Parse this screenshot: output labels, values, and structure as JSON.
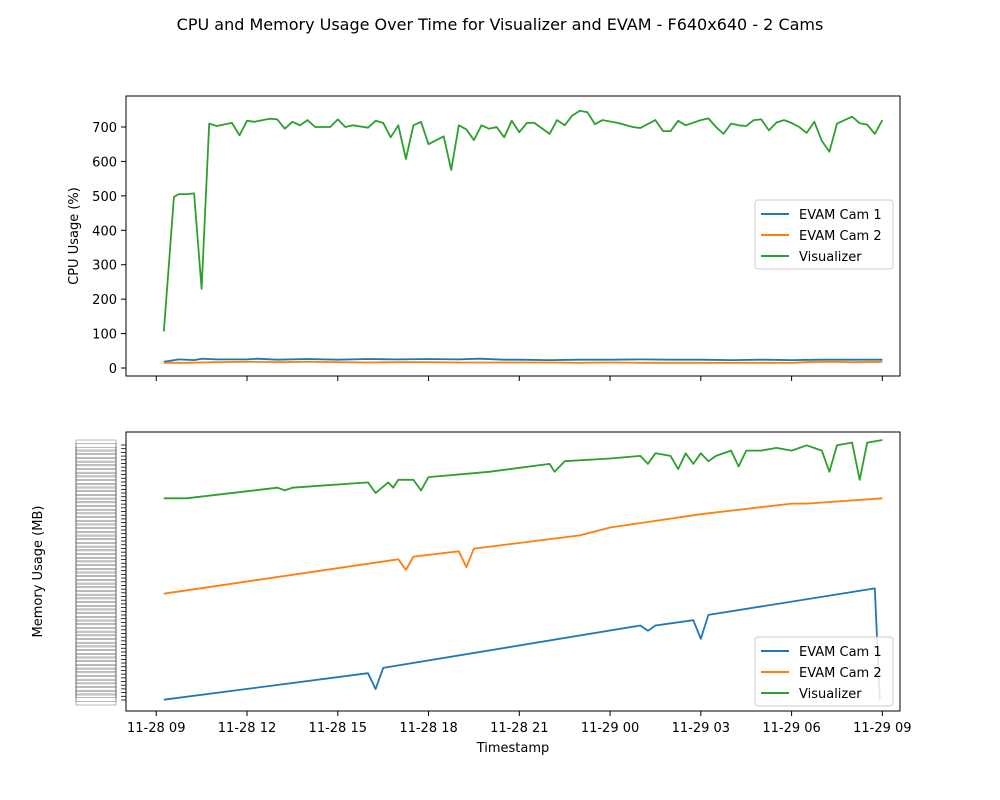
{
  "title": "CPU and Memory Usage Over Time for Visualizer and EVAM - F640x640 - 2 Cams",
  "colors": {
    "EVAM Cam 1": "#1f77b4",
    "EVAM Cam 2": "#ff7f0e",
    "Visualizer": "#2ca02c"
  },
  "chart_data": [
    {
      "type": "line",
      "xlabel": "",
      "ylabel": "CPU Usage (%)",
      "ylim": [
        0,
        750
      ],
      "y_ticks": [
        0,
        100,
        200,
        300,
        400,
        500,
        600,
        700
      ],
      "x_tick_labels_shown": false,
      "legend": "center-right",
      "grid": false,
      "series": [
        {
          "name": "EVAM Cam 1",
          "color": "#1f77b4",
          "points": [
            [
              "2023-11-28 09:15",
              18
            ],
            [
              "2023-11-28 09:45",
              25
            ],
            [
              "2023-11-28 10:15",
              23
            ],
            [
              "2023-11-28 10:30",
              27
            ],
            [
              "2023-11-28 11:00",
              25
            ],
            [
              "2023-11-28 12:00",
              25
            ],
            [
              "2023-11-28 12:20",
              27
            ],
            [
              "2023-11-28 13:00",
              24
            ],
            [
              "2023-11-28 14:00",
              26
            ],
            [
              "2023-11-28 15:00",
              24
            ],
            [
              "2023-11-28 16:00",
              26
            ],
            [
              "2023-11-28 17:00",
              25
            ],
            [
              "2023-11-28 18:00",
              26
            ],
            [
              "2023-11-28 19:00",
              25
            ],
            [
              "2023-11-28 19:40",
              27
            ],
            [
              "2023-11-28 20:30",
              24
            ],
            [
              "2023-11-28 21:00",
              24
            ],
            [
              "2023-11-28 22:00",
              23
            ],
            [
              "2023-11-28 23:00",
              24
            ],
            [
              "2023-11-29 00:00",
              24
            ],
            [
              "2023-11-29 01:00",
              25
            ],
            [
              "2023-11-29 02:00",
              24
            ],
            [
              "2023-11-29 03:00",
              24
            ],
            [
              "2023-11-29 04:00",
              23
            ],
            [
              "2023-11-29 05:00",
              24
            ],
            [
              "2023-11-29 06:00",
              23
            ],
            [
              "2023-11-29 07:00",
              24
            ],
            [
              "2023-11-29 08:00",
              24
            ],
            [
              "2023-11-29 09:00",
              24
            ]
          ]
        },
        {
          "name": "EVAM Cam 2",
          "color": "#ff7f0e",
          "points": [
            [
              "2023-11-28 09:15",
              15
            ],
            [
              "2023-11-28 10:00",
              15
            ],
            [
              "2023-11-28 11:00",
              17
            ],
            [
              "2023-11-28 12:00",
              18
            ],
            [
              "2023-11-28 13:00",
              17
            ],
            [
              "2023-11-28 14:00",
              18
            ],
            [
              "2023-11-28 15:00",
              17
            ],
            [
              "2023-11-28 16:00",
              16
            ],
            [
              "2023-11-28 17:00",
              17
            ],
            [
              "2023-11-28 18:00",
              17
            ],
            [
              "2023-11-28 19:00",
              16
            ],
            [
              "2023-11-28 20:00",
              16
            ],
            [
              "2023-11-28 21:00",
              16
            ],
            [
              "2023-11-28 22:00",
              16
            ],
            [
              "2023-11-28 23:00",
              15
            ],
            [
              "2023-11-29 00:00",
              16
            ],
            [
              "2023-11-29 01:00",
              15
            ],
            [
              "2023-11-29 02:00",
              15
            ],
            [
              "2023-11-29 03:00",
              15
            ],
            [
              "2023-11-29 04:00",
              15
            ],
            [
              "2023-11-29 05:00",
              15
            ],
            [
              "2023-11-29 06:00",
              15
            ],
            [
              "2023-11-29 06:45",
              18
            ],
            [
              "2023-11-29 07:30",
              18
            ],
            [
              "2023-11-29 08:00",
              17
            ],
            [
              "2023-11-29 09:00",
              18
            ]
          ]
        },
        {
          "name": "Visualizer",
          "color": "#2ca02c",
          "points": [
            [
              "2023-11-28 09:15",
              106
            ],
            [
              "2023-11-28 09:25",
              300
            ],
            [
              "2023-11-28 09:35",
              497
            ],
            [
              "2023-11-28 09:45",
              505
            ],
            [
              "2023-11-28 10:00",
              505
            ],
            [
              "2023-11-28 10:15",
              507
            ],
            [
              "2023-11-28 10:30",
              230
            ],
            [
              "2023-11-28 10:45",
              710
            ],
            [
              "2023-11-28 11:00",
              703
            ],
            [
              "2023-11-28 11:30",
              712
            ],
            [
              "2023-11-28 11:45",
              676
            ],
            [
              "2023-11-28 12:00",
              718
            ],
            [
              "2023-11-28 12:15",
              715
            ],
            [
              "2023-11-28 12:45",
              724
            ],
            [
              "2023-11-28 13:00",
              722
            ],
            [
              "2023-11-28 13:15",
              695
            ],
            [
              "2023-11-28 13:30",
              715
            ],
            [
              "2023-11-28 13:45",
              705
            ],
            [
              "2023-11-28 14:00",
              720
            ],
            [
              "2023-11-28 14:15",
              700
            ],
            [
              "2023-11-28 14:45",
              700
            ],
            [
              "2023-11-28 15:00",
              722
            ],
            [
              "2023-11-28 15:15",
              700
            ],
            [
              "2023-11-28 15:30",
              705
            ],
            [
              "2023-11-28 16:00",
              698
            ],
            [
              "2023-11-28 16:15",
              718
            ],
            [
              "2023-11-28 16:30",
              712
            ],
            [
              "2023-11-28 16:45",
              670
            ],
            [
              "2023-11-28 17:00",
              705
            ],
            [
              "2023-11-28 17:15",
              607
            ],
            [
              "2023-11-28 17:30",
              705
            ],
            [
              "2023-11-28 17:45",
              715
            ],
            [
              "2023-11-28 18:00",
              650
            ],
            [
              "2023-11-28 18:30",
              673
            ],
            [
              "2023-11-28 18:45",
              575
            ],
            [
              "2023-11-28 19:00",
              705
            ],
            [
              "2023-11-28 19:15",
              693
            ],
            [
              "2023-11-28 19:30",
              662
            ],
            [
              "2023-11-28 19:45",
              705
            ],
            [
              "2023-11-28 20:00",
              695
            ],
            [
              "2023-11-28 20:15",
              700
            ],
            [
              "2023-11-28 20:30",
              670
            ],
            [
              "2023-11-28 20:45",
              718
            ],
            [
              "2023-11-28 21:00",
              685
            ],
            [
              "2023-11-28 21:15",
              712
            ],
            [
              "2023-11-28 21:30",
              712
            ],
            [
              "2023-11-28 22:00",
              680
            ],
            [
              "2023-11-28 22:15",
              720
            ],
            [
              "2023-11-28 22:30",
              705
            ],
            [
              "2023-11-28 22:45",
              733
            ],
            [
              "2023-11-28 23:00",
              747
            ],
            [
              "2023-11-28 23:15",
              743
            ],
            [
              "2023-11-28 23:30",
              708
            ],
            [
              "2023-11-28 23:45",
              720
            ],
            [
              "2023-11-29 00:15",
              712
            ],
            [
              "2023-11-29 00:45",
              700
            ],
            [
              "2023-11-29 01:00",
              697
            ],
            [
              "2023-11-29 01:30",
              720
            ],
            [
              "2023-11-29 01:45",
              688
            ],
            [
              "2023-11-29 02:00",
              688
            ],
            [
              "2023-11-29 02:15",
              718
            ],
            [
              "2023-11-29 02:30",
              705
            ],
            [
              "2023-11-29 03:00",
              720
            ],
            [
              "2023-11-29 03:15",
              725
            ],
            [
              "2023-11-29 03:30",
              700
            ],
            [
              "2023-11-29 03:45",
              680
            ],
            [
              "2023-11-29 04:00",
              710
            ],
            [
              "2023-11-29 04:15",
              705
            ],
            [
              "2023-11-29 04:30",
              703
            ],
            [
              "2023-11-29 04:45",
              720
            ],
            [
              "2023-11-29 05:00",
              722
            ],
            [
              "2023-11-29 05:15",
              690
            ],
            [
              "2023-11-29 05:30",
              713
            ],
            [
              "2023-11-29 05:45",
              720
            ],
            [
              "2023-11-29 06:00",
              712
            ],
            [
              "2023-11-29 06:15",
              700
            ],
            [
              "2023-11-29 06:30",
              683
            ],
            [
              "2023-11-29 06:45",
              715
            ],
            [
              "2023-11-29 07:00",
              660
            ],
            [
              "2023-11-29 07:15",
              628
            ],
            [
              "2023-11-29 07:30",
              710
            ],
            [
              "2023-11-29 08:00",
              730
            ],
            [
              "2023-11-29 08:15",
              711
            ],
            [
              "2023-11-29 08:30",
              707
            ],
            [
              "2023-11-29 08:45",
              680
            ],
            [
              "2023-11-29 09:00",
              720
            ]
          ]
        }
      ]
    },
    {
      "type": "line",
      "xlabel": "Timestamp",
      "ylabel": "Memory Usage (MB)",
      "ylim": [
        0,
        1
      ],
      "y_tick_labels_illegible": true,
      "x_ticks": [
        "11-28 09",
        "11-28 12",
        "11-28 15",
        "11-28 18",
        "11-28 21",
        "11-29 00",
        "11-29 03",
        "11-29 06",
        "11-29 09"
      ],
      "legend": "lower-right",
      "grid": false,
      "series": [
        {
          "name": "EVAM Cam 1",
          "color": "#1f77b4",
          "points": [
            [
              "2023-11-28 09:15",
              0.02
            ],
            [
              "2023-11-28 16:00",
              0.12
            ],
            [
              "2023-11-28 16:15",
              0.06
            ],
            [
              "2023-11-28 16:30",
              0.14
            ],
            [
              "2023-11-29 01:00",
              0.3
            ],
            [
              "2023-11-29 01:15",
              0.28
            ],
            [
              "2023-11-29 01:30",
              0.3
            ],
            [
              "2023-11-29 02:45",
              0.32
            ],
            [
              "2023-11-29 03:00",
              0.25
            ],
            [
              "2023-11-29 03:15",
              0.34
            ],
            [
              "2023-11-29 08:45",
              0.44
            ],
            [
              "2023-11-29 08:55",
              0.02
            ]
          ]
        },
        {
          "name": "EVAM Cam 2",
          "color": "#ff7f0e",
          "points": [
            [
              "2023-11-28 09:15",
              0.42
            ],
            [
              "2023-11-28 17:00",
              0.55
            ],
            [
              "2023-11-28 17:15",
              0.51
            ],
            [
              "2023-11-28 17:30",
              0.56
            ],
            [
              "2023-11-28 19:00",
              0.58
            ],
            [
              "2023-11-28 19:15",
              0.52
            ],
            [
              "2023-11-28 19:30",
              0.59
            ],
            [
              "2023-11-28 23:00",
              0.64
            ],
            [
              "2023-11-29 00:00",
              0.67
            ],
            [
              "2023-11-29 03:00",
              0.72
            ],
            [
              "2023-11-29 06:00",
              0.76
            ],
            [
              "2023-11-29 06:30",
              0.76
            ],
            [
              "2023-11-29 09:00",
              0.78
            ]
          ]
        },
        {
          "name": "Visualizer",
          "color": "#2ca02c",
          "points": [
            [
              "2023-11-28 09:15",
              0.78
            ],
            [
              "2023-11-28 10:00",
              0.78
            ],
            [
              "2023-11-28 13:00",
              0.82
            ],
            [
              "2023-11-28 13:15",
              0.81
            ],
            [
              "2023-11-28 13:30",
              0.82
            ],
            [
              "2023-11-28 16:00",
              0.84
            ],
            [
              "2023-11-28 16:15",
              0.8
            ],
            [
              "2023-11-28 16:40",
              0.84
            ],
            [
              "2023-11-28 16:50",
              0.82
            ],
            [
              "2023-11-28 17:00",
              0.85
            ],
            [
              "2023-11-28 17:30",
              0.85
            ],
            [
              "2023-11-28 17:45",
              0.81
            ],
            [
              "2023-11-28 18:00",
              0.86
            ],
            [
              "2023-11-28 20:00",
              0.88
            ],
            [
              "2023-11-28 22:00",
              0.91
            ],
            [
              "2023-11-28 22:10",
              0.88
            ],
            [
              "2023-11-28 22:30",
              0.92
            ],
            [
              "2023-11-29 00:00",
              0.93
            ],
            [
              "2023-11-29 01:00",
              0.94
            ],
            [
              "2023-11-29 01:15",
              0.91
            ],
            [
              "2023-11-29 01:30",
              0.95
            ],
            [
              "2023-11-29 02:00",
              0.94
            ],
            [
              "2023-11-29 02:15",
              0.89
            ],
            [
              "2023-11-29 02:30",
              0.95
            ],
            [
              "2023-11-29 02:45",
              0.91
            ],
            [
              "2023-11-29 03:00",
              0.95
            ],
            [
              "2023-11-29 03:15",
              0.92
            ],
            [
              "2023-11-29 03:30",
              0.94
            ],
            [
              "2023-11-29 04:00",
              0.96
            ],
            [
              "2023-11-29 04:15",
              0.9
            ],
            [
              "2023-11-29 04:30",
              0.96
            ],
            [
              "2023-11-29 05:00",
              0.96
            ],
            [
              "2023-11-29 05:30",
              0.97
            ],
            [
              "2023-11-29 06:00",
              0.96
            ],
            [
              "2023-11-29 06:30",
              0.98
            ],
            [
              "2023-11-29 07:00",
              0.96
            ],
            [
              "2023-11-29 07:15",
              0.88
            ],
            [
              "2023-11-29 07:30",
              0.98
            ],
            [
              "2023-11-29 08:00",
              0.99
            ],
            [
              "2023-11-29 08:15",
              0.85
            ],
            [
              "2023-11-29 08:30",
              0.99
            ],
            [
              "2023-11-29 09:00",
              1.0
            ]
          ]
        }
      ]
    }
  ]
}
